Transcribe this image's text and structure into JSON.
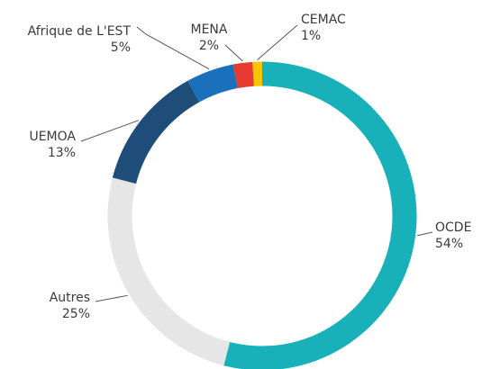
{
  "chart_data": {
    "type": "donut",
    "categories": [
      "OCDE",
      "Autres",
      "UEMOA",
      "Afrique de L'EST",
      "MENA",
      "CEMAC"
    ],
    "values": [
      54,
      25,
      13,
      5,
      2,
      1
    ],
    "value_labels": [
      "54%",
      "25%",
      "13%",
      "5%",
      "2%",
      "1%"
    ],
    "colors": [
      "#19b1b9",
      "#e6e6e6",
      "#1f4d7a",
      "#1b70bc",
      "#e63a30",
      "#f6c400"
    ]
  }
}
